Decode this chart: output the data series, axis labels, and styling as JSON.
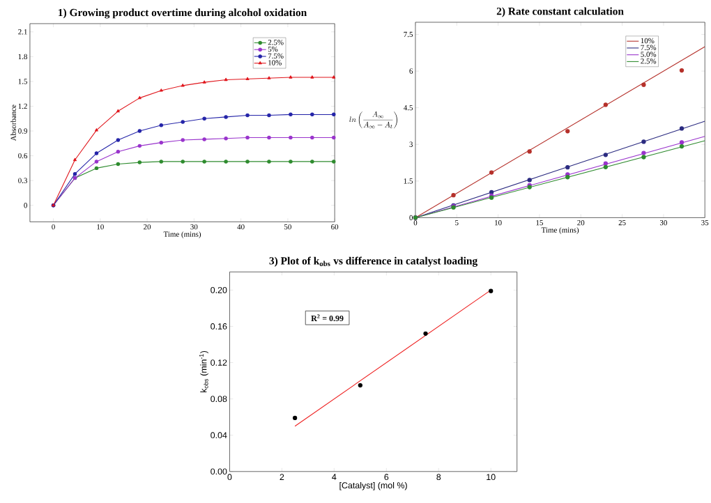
{
  "chart_data": [
    {
      "type": "line",
      "title": "1) Growing product overtime during alcohol oxidation",
      "xlabel": "Time (mins)",
      "ylabel": "Absorbance",
      "xlim": [
        -5,
        60
      ],
      "ylim": [
        -0.2,
        2.2
      ],
      "xticks": [
        0,
        10,
        20,
        30,
        40,
        50,
        60
      ],
      "yticks": [
        0,
        0.3,
        0.6,
        0.9,
        1.2,
        1.5,
        1.8,
        2.1
      ],
      "x": [
        0,
        4.6,
        9.2,
        13.8,
        18.4,
        23,
        27.6,
        32.2,
        36.8,
        41.4,
        46,
        50.6,
        55.2,
        59.8
      ],
      "grid": false,
      "legend": "top right",
      "line_style": "solid",
      "series": [
        {
          "name": "2.5%",
          "color": "#2e8b2e",
          "marker": "circle",
          "values": [
            0,
            0.33,
            0.45,
            0.5,
            0.52,
            0.53,
            0.53,
            0.53,
            0.53,
            0.53,
            0.53,
            0.53,
            0.53,
            0.53
          ]
        },
        {
          "name": "5%",
          "color": "#9933cc",
          "marker": "circle",
          "values": [
            0,
            0.33,
            0.53,
            0.65,
            0.72,
            0.76,
            0.79,
            0.8,
            0.81,
            0.82,
            0.82,
            0.82,
            0.82,
            0.82
          ]
        },
        {
          "name": "7.5%",
          "color": "#2424a8",
          "marker": "circle",
          "values": [
            0,
            0.38,
            0.63,
            0.79,
            0.9,
            0.97,
            1.01,
            1.05,
            1.07,
            1.09,
            1.09,
            1.1,
            1.1,
            1.1
          ]
        },
        {
          "name": "10%",
          "color": "#e0161c",
          "marker": "triangle",
          "values": [
            0,
            0.55,
            0.91,
            1.14,
            1.3,
            1.39,
            1.45,
            1.49,
            1.52,
            1.53,
            1.54,
            1.55,
            1.55,
            1.55
          ]
        }
      ]
    },
    {
      "type": "line",
      "title": "2) Rate constant calculation",
      "xlabel": "Time (mins)",
      "ylabel": "ln\\left(\\frac{A_\\infty}{A_\\infty - A_t}\\right)",
      "xlim": [
        0,
        35
      ],
      "ylim": [
        0,
        8
      ],
      "xticks": [
        0,
        5,
        10,
        15,
        20,
        25,
        30,
        35
      ],
      "yticks": [
        0,
        1.5,
        3,
        4.5,
        6,
        7.5
      ],
      "grid": false,
      "legend": "top right",
      "line_style": "solid",
      "series": [
        {
          "name": "10%",
          "color": "#b5302a",
          "marker": "none",
          "x": [
            0,
            35
          ],
          "values": [
            0,
            7.0
          ]
        },
        {
          "name": "7.5%",
          "color": "#2b2b80",
          "marker": "none",
          "x": [
            0,
            35
          ],
          "values": [
            0,
            3.95
          ]
        },
        {
          "name": "5.0%",
          "color": "#9933cc",
          "marker": "none",
          "x": [
            0,
            35
          ],
          "values": [
            0,
            3.33
          ]
        },
        {
          "name": "2.5%",
          "color": "#2e8b2e",
          "marker": "none",
          "x": [
            0,
            35
          ],
          "values": [
            0,
            3.15
          ]
        },
        {
          "type": "scatter",
          "color": "#b5302a",
          "marker": "circle",
          "x": [
            0,
            4.6,
            9.2,
            13.8,
            18.4,
            23,
            27.6,
            32.2
          ],
          "values": [
            0,
            0.92,
            1.85,
            2.71,
            3.54,
            4.62,
            5.44,
            6.03
          ]
        },
        {
          "type": "scatter",
          "color": "#2b2b80",
          "marker": "circle",
          "x": [
            0,
            4.6,
            9.2,
            13.8,
            18.4,
            23,
            27.6,
            32.2
          ],
          "values": [
            0,
            0.5,
            1.04,
            1.54,
            2.06,
            2.57,
            3.11,
            3.65
          ]
        },
        {
          "type": "scatter",
          "color": "#9933cc",
          "marker": "circle",
          "x": [
            0,
            4.6,
            9.2,
            13.8,
            18.4,
            23,
            27.6,
            32.2
          ],
          "values": [
            0,
            0.47,
            0.9,
            1.33,
            1.77,
            2.22,
            2.65,
            3.08
          ]
        },
        {
          "type": "scatter",
          "color": "#2e8b2e",
          "marker": "circle",
          "x": [
            0,
            4.6,
            9.2,
            13.8,
            18.4,
            23,
            27.6,
            32.2
          ],
          "values": [
            0,
            0.42,
            0.82,
            1.25,
            1.66,
            2.07,
            2.48,
            2.92
          ]
        }
      ]
    },
    {
      "type": "scatter",
      "title": "3) Plot of k$_{obs}$ vs difference  in catalyst loading",
      "xlabel": "[Catalyst] (mol %)",
      "ylabel": "k$_{obs}$ (min$^{-1}$)",
      "xlim": [
        0,
        11
      ],
      "ylim": [
        0,
        0.22
      ],
      "xticks": [
        0,
        2,
        4,
        6,
        8,
        10
      ],
      "yticks": [
        {
          "value": 0,
          "label": "0.00"
        },
        {
          "value": 0.04,
          "label": "0.04"
        },
        {
          "value": 0.08,
          "label": "0.08"
        },
        {
          "value": 0.12,
          "label": "0.12"
        },
        {
          "value": 0.16,
          "label": "0.16"
        },
        {
          "value": 0.2,
          "label": "0.20"
        }
      ],
      "grid": false,
      "annotations": [
        "R$^{2}$ = 0.99"
      ],
      "series": [
        {
          "color": "#000000",
          "marker": "circle",
          "x": [
            2.5,
            5,
            7.5,
            10
          ],
          "values": [
            0.059,
            0.095,
            0.152,
            0.199
          ]
        },
        {
          "type": "line",
          "color": "#ee1c1c",
          "marker": "none",
          "x": [
            2.5,
            10
          ],
          "values": [
            0.05,
            0.2
          ]
        }
      ]
    }
  ]
}
